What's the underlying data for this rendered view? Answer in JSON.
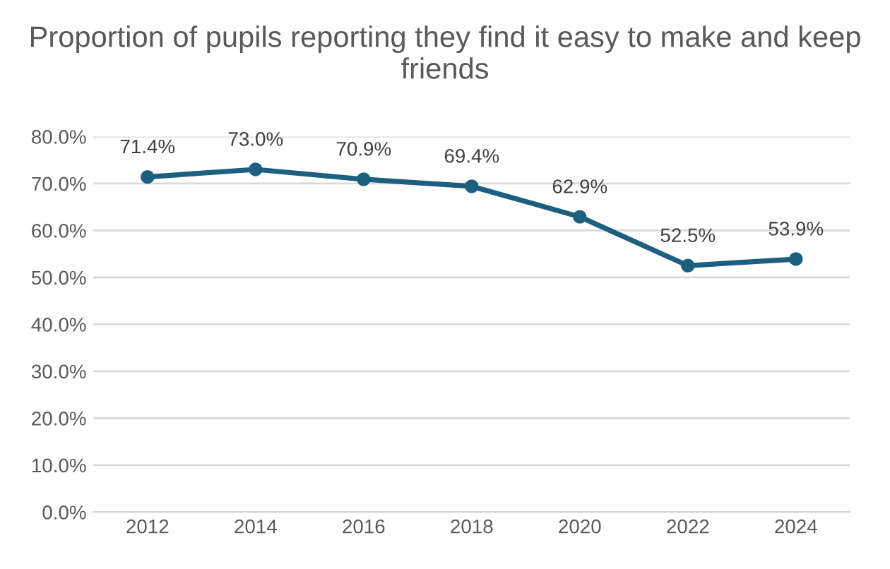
{
  "chart_data": {
    "type": "line",
    "title": "Proportion of pupils reporting they find it easy to make and keep friends",
    "categories": [
      "2012",
      "2014",
      "2016",
      "2018",
      "2020",
      "2022",
      "2024"
    ],
    "values": [
      71.4,
      73.0,
      70.9,
      69.4,
      62.9,
      52.5,
      53.9
    ],
    "value_labels": [
      "71.4%",
      "73.0%",
      "70.9%",
      "69.4%",
      "62.9%",
      "52.5%",
      "53.9%"
    ],
    "color": "#1d5f7f",
    "marker": "circle",
    "line_style": "solid",
    "grid": "y",
    "legend": false,
    "ylim": [
      0,
      80
    ],
    "yticks": [
      {
        "value": 0,
        "label": "0.0%"
      },
      {
        "value": 10,
        "label": "10.0%"
      },
      {
        "value": 20,
        "label": "20.0%"
      },
      {
        "value": 30,
        "label": "30.0%"
      },
      {
        "value": 40,
        "label": "40.0%"
      },
      {
        "value": 50,
        "label": "50.0%"
      },
      {
        "value": 60,
        "label": "60.0%"
      },
      {
        "value": 70,
        "label": "70.0%"
      },
      {
        "value": 80,
        "label": "80.0%"
      }
    ]
  }
}
